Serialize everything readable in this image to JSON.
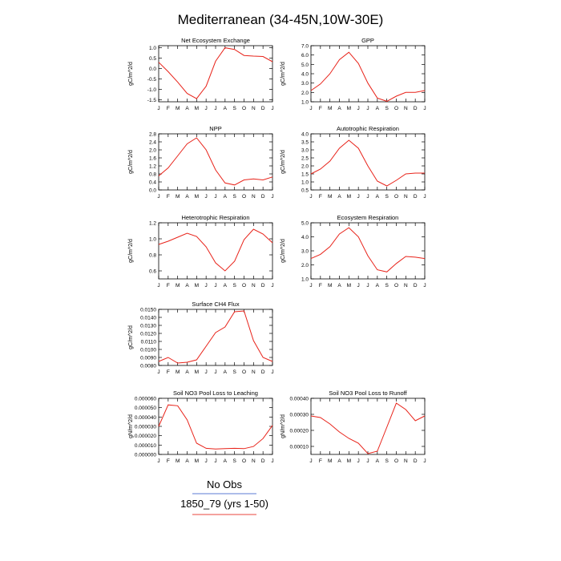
{
  "page_title": "Mediterranean (34-45N,10W-30E)",
  "legend": {
    "entries": [
      {
        "label": "No Obs",
        "color": "#5b7bd5"
      },
      {
        "label": "1850_79 (yrs 1-50)",
        "color": "#e8463c"
      }
    ]
  },
  "line_color": "#e8231a",
  "chart_data": [
    {
      "type": "line",
      "title": "Net Ecosystem Exchange",
      "ylabel": "gC/m^2/d",
      "x": [
        "J",
        "F",
        "M",
        "A",
        "M",
        "J",
        "J",
        "A",
        "S",
        "O",
        "N",
        "D",
        "J"
      ],
      "ylim": [
        -1.6,
        1.1
      ],
      "yticks": [
        1.0,
        0.5,
        0.0,
        -0.5,
        -1.0,
        -1.5
      ],
      "ytick_labels": [
        "1.0",
        "0.5",
        "0.0",
        "-0.5",
        "-1.0",
        "-1.5"
      ],
      "series": [
        {
          "values": [
            0.3,
            -0.15,
            -0.65,
            -1.2,
            -1.45,
            -0.85,
            0.35,
            1.0,
            0.92,
            0.63,
            0.6,
            0.58,
            0.33
          ]
        }
      ]
    },
    {
      "type": "line",
      "title": "GPP",
      "ylabel": "gC/m^2/d",
      "x": [
        "J",
        "F",
        "M",
        "A",
        "M",
        "J",
        "J",
        "A",
        "S",
        "O",
        "N",
        "D",
        "J"
      ],
      "ylim": [
        1.0,
        7.0
      ],
      "yticks": [
        7.0,
        6.0,
        5.0,
        4.0,
        3.0,
        2.0,
        1.0
      ],
      "ytick_labels": [
        "7.0",
        "6.0",
        "5.0",
        "4.0",
        "3.0",
        "2.0",
        "1.0"
      ],
      "series": [
        {
          "values": [
            2.2,
            2.9,
            4.0,
            5.5,
            6.3,
            5.1,
            3.0,
            1.4,
            1.05,
            1.6,
            2.0,
            2.0,
            2.2
          ]
        }
      ]
    },
    {
      "type": "line",
      "title": "NPP",
      "ylabel": "gC/m^2/d",
      "x": [
        "J",
        "F",
        "M",
        "A",
        "M",
        "J",
        "J",
        "A",
        "S",
        "O",
        "N",
        "D",
        "J"
      ],
      "ylim": [
        0.0,
        2.8
      ],
      "yticks": [
        2.8,
        2.4,
        2.0,
        1.6,
        1.2,
        0.8,
        0.4,
        0.0
      ],
      "ytick_labels": [
        "2.8",
        "2.4",
        "2.0",
        "1.6",
        "1.2",
        "0.8",
        "0.4",
        "0.0"
      ],
      "series": [
        {
          "values": [
            0.7,
            1.1,
            1.7,
            2.3,
            2.6,
            2.0,
            1.0,
            0.35,
            0.25,
            0.5,
            0.55,
            0.5,
            0.65
          ]
        }
      ]
    },
    {
      "type": "line",
      "title": "Autotrophic Respiration",
      "ylabel": "gC/m^2/d",
      "x": [
        "J",
        "F",
        "M",
        "A",
        "M",
        "J",
        "J",
        "A",
        "S",
        "O",
        "N",
        "D",
        "J"
      ],
      "ylim": [
        0.5,
        4.0
      ],
      "yticks": [
        4.0,
        3.5,
        3.0,
        2.5,
        2.0,
        1.5,
        1.0,
        0.5
      ],
      "ytick_labels": [
        "4.0",
        "3.5",
        "3.0",
        "2.5",
        "2.0",
        "1.5",
        "1.0",
        "0.5"
      ],
      "series": [
        {
          "values": [
            1.5,
            1.8,
            2.3,
            3.1,
            3.6,
            3.1,
            2.0,
            1.05,
            0.75,
            1.1,
            1.5,
            1.55,
            1.55
          ]
        }
      ]
    },
    {
      "type": "line",
      "title": "Heterotrophic Respiration",
      "ylabel": "gC/m^2/d",
      "x": [
        "J",
        "F",
        "M",
        "A",
        "M",
        "J",
        "J",
        "A",
        "S",
        "O",
        "N",
        "D",
        "J"
      ],
      "ylim": [
        0.5,
        1.2
      ],
      "yticks": [
        1.2,
        1.0,
        0.8,
        0.6
      ],
      "ytick_labels": [
        "1.2",
        "1.0",
        "0.8",
        "0.6"
      ],
      "series": [
        {
          "values": [
            0.93,
            0.97,
            1.02,
            1.07,
            1.03,
            0.9,
            0.7,
            0.6,
            0.72,
            0.99,
            1.12,
            1.06,
            0.95
          ]
        }
      ]
    },
    {
      "type": "line",
      "title": "Ecosystem Respiration",
      "ylabel": "gC/m^2/d",
      "x": [
        "J",
        "F",
        "M",
        "A",
        "M",
        "J",
        "J",
        "A",
        "S",
        "O",
        "N",
        "D",
        "J"
      ],
      "ylim": [
        1.0,
        5.0
      ],
      "yticks": [
        5.0,
        4.0,
        3.0,
        2.0,
        1.0
      ],
      "ytick_labels": [
        "5.0",
        "4.0",
        "3.0",
        "2.0",
        "1.0"
      ],
      "series": [
        {
          "values": [
            2.45,
            2.75,
            3.3,
            4.2,
            4.65,
            4.0,
            2.65,
            1.65,
            1.5,
            2.1,
            2.6,
            2.55,
            2.45
          ]
        }
      ]
    },
    {
      "type": "line",
      "title": "Surface CH4 Flux",
      "ylabel": "gC/m^2/d",
      "x": [
        "J",
        "F",
        "M",
        "A",
        "M",
        "J",
        "J",
        "A",
        "S",
        "O",
        "N",
        "D",
        "J"
      ],
      "ylim": [
        0.008,
        0.015
      ],
      "yticks": [
        0.015,
        0.014,
        0.013,
        0.012,
        0.011,
        0.01,
        0.009,
        0.008
      ],
      "ytick_labels": [
        "0.0150",
        "0.0140",
        "0.0130",
        "0.0120",
        "0.0110",
        "0.0100",
        "0.0090",
        "0.0080"
      ],
      "series": [
        {
          "values": [
            0.0085,
            0.009,
            0.0083,
            0.0084,
            0.0087,
            0.0104,
            0.0121,
            0.0128,
            0.0147,
            0.0148,
            0.0111,
            0.009,
            0.0085
          ]
        }
      ]
    },
    {
      "type": "line",
      "title": "Soil NO3 Pool Loss to Leaching",
      "ylabel": "gN/m^2/d",
      "x": [
        "J",
        "F",
        "M",
        "A",
        "M",
        "J",
        "J",
        "A",
        "S",
        "O",
        "N",
        "D",
        "J"
      ],
      "ylim": [
        0.0,
        6e-05
      ],
      "yticks": [
        6e-05,
        5e-05,
        4e-05,
        3e-05,
        2e-05,
        1e-05,
        0.0
      ],
      "ytick_labels": [
        "0.000060",
        "0.000050",
        "0.000040",
        "0.000030",
        "0.000020",
        "0.000010",
        "0.000000"
      ],
      "series": [
        {
          "values": [
            3e-05,
            5.3e-05,
            5.2e-05,
            3.7e-05,
            1.2e-05,
            6.5e-06,
            5.8e-06,
            6.2e-06,
            6.5e-06,
            6.2e-06,
            8.5e-06,
            1.7e-05,
            3.1e-05
          ]
        }
      ]
    },
    {
      "type": "line",
      "title": "Soil NO3 Pool Loss to Runoff",
      "ylabel": "gN/m^2/d",
      "x": [
        "J",
        "F",
        "M",
        "A",
        "M",
        "J",
        "J",
        "A",
        "S",
        "O",
        "N",
        "D",
        "J"
      ],
      "ylim": [
        5e-05,
        0.0004
      ],
      "yticks": [
        0.0004,
        0.0003,
        0.0002,
        0.0001
      ],
      "ytick_labels": [
        "0.00040",
        "0.00030",
        "0.00020",
        "0.00010"
      ],
      "series": [
        {
          "values": [
            0.00029,
            0.00028,
            0.00024,
            0.00019,
            0.00015,
            0.00012,
            5.5e-05,
            7e-05,
            0.00022,
            0.00037,
            0.00033,
            0.00026,
            0.00029
          ]
        }
      ]
    }
  ]
}
